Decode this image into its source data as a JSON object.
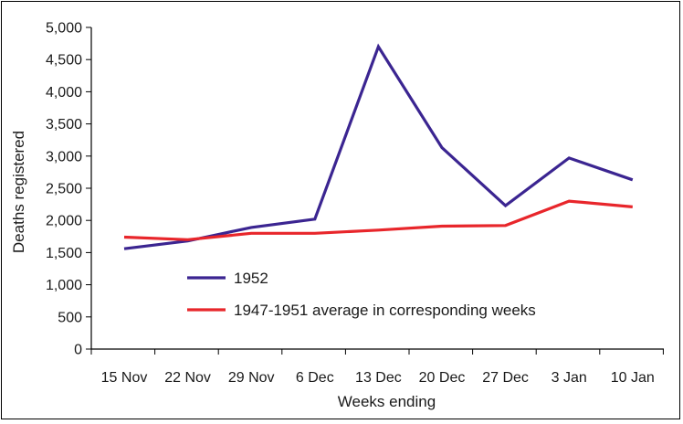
{
  "chart_data": {
    "type": "line",
    "categories": [
      "15 Nov",
      "22 Nov",
      "29 Nov",
      "6 Dec",
      "13 Dec",
      "20 Dec",
      "27 Dec",
      "3 Jan",
      "10 Jan"
    ],
    "series": [
      {
        "name": "1952",
        "color": "#3b2591",
        "values": [
          1560,
          1680,
          1890,
          2020,
          4700,
          3130,
          2230,
          2970,
          2630
        ]
      },
      {
        "name": "1947-1951 average in corresponding weeks",
        "color": "#e8262b",
        "values": [
          1740,
          1700,
          1800,
          1800,
          1850,
          1910,
          1920,
          2300,
          2210
        ]
      }
    ],
    "xlabel": "Weeks ending",
    "ylabel": "Deaths registered",
    "ylim": [
      0,
      5000
    ],
    "yticks": [
      0,
      500,
      1000,
      1500,
      2000,
      2500,
      3000,
      3500,
      4000,
      4500,
      5000
    ],
    "ytick_labels": [
      "0",
      "500",
      "1,000",
      "1,500",
      "2,000",
      "2,500",
      "3,000",
      "3,500",
      "4,000",
      "4,500",
      "5,000"
    ],
    "grid": false,
    "legend_position": "lower-center"
  }
}
